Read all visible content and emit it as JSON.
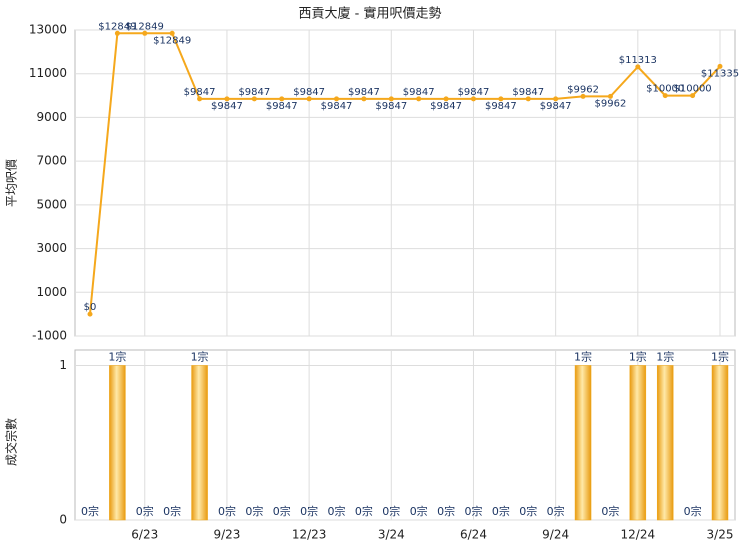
{
  "chart_data": [
    {
      "type": "line",
      "title": "西貢大廈 - 實用呎價走勢",
      "y_label": "平均呎價",
      "color": "#f5a81c",
      "values": [
        0,
        12849,
        12849,
        12849,
        9847,
        9847,
        9847,
        9847,
        9847,
        9847,
        9847,
        9847,
        9847,
        9847,
        9847,
        9847,
        9847,
        9847,
        9962,
        9962,
        11313,
        10000,
        10000,
        11335
      ],
      "value_labels": [
        "$0",
        "$12849",
        "$12849",
        "$12849",
        "$9847",
        "$9847",
        "$9847",
        "$9847",
        "$9847",
        "$9847",
        "$9847",
        "$9847",
        "$9847",
        "$9847",
        "$9847",
        "$9847",
        "$9847",
        "$9847",
        "$9962",
        "$9962",
        "$11313",
        "$10000",
        "$10000",
        "$11335"
      ],
      "ylim": [
        -1000,
        13000
      ],
      "yticks": [
        -1000,
        1000,
        3000,
        5000,
        7000,
        9000,
        11000,
        13000
      ],
      "grid": true
    },
    {
      "type": "bar",
      "y_label": "成交宗數",
      "color": "#f0a818",
      "categories": [
        null,
        null,
        "6/23",
        null,
        null,
        "9/23",
        null,
        null,
        "12/23",
        null,
        null,
        "3/24",
        null,
        null,
        "6/24",
        null,
        null,
        "9/24",
        null,
        null,
        "12/24",
        null,
        null,
        "3/25"
      ],
      "values": [
        0,
        1,
        0,
        0,
        1,
        0,
        0,
        0,
        0,
        0,
        0,
        0,
        0,
        0,
        0,
        0,
        0,
        0,
        1,
        0,
        1,
        1,
        0,
        1
      ],
      "value_labels": [
        "0宗",
        "1宗",
        "0宗",
        "0宗",
        "1宗",
        "0宗",
        "0宗",
        "0宗",
        "0宗",
        "0宗",
        "0宗",
        "0宗",
        "0宗",
        "0宗",
        "0宗",
        "0宗",
        "0宗",
        "0宗",
        "1宗",
        "0宗",
        "1宗",
        "1宗",
        "0宗",
        "1宗"
      ],
      "ylim": [
        0,
        1.1
      ],
      "yticks": [
        0,
        1
      ],
      "grid": true
    }
  ]
}
